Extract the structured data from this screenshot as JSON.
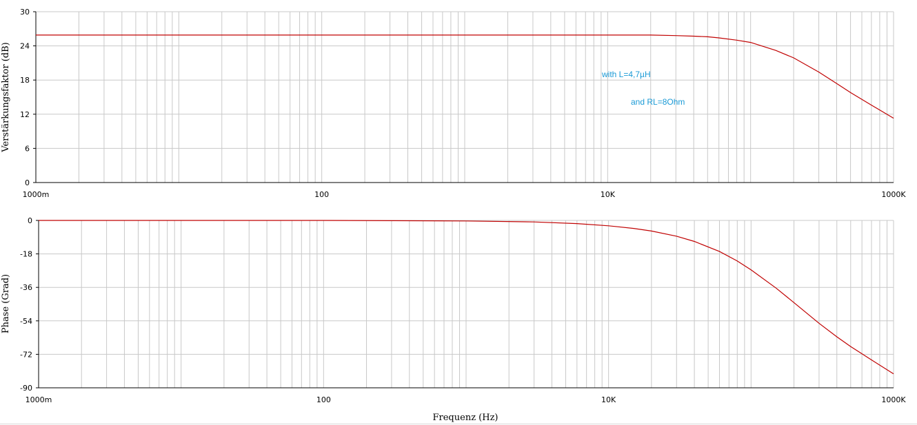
{
  "colors": {
    "grid": "#c8c8c8",
    "axis": "#000000",
    "curve": "#c00000",
    "annotation": "#1a9ad6"
  },
  "chart_data": [
    {
      "type": "line",
      "title": "",
      "xlabel": "",
      "ylabel": "Verstärkungsfaktor (dB)",
      "xscale": "log",
      "xlim": [
        1,
        1000000
      ],
      "ylim": [
        0,
        30
      ],
      "yticks": [
        0,
        6,
        12,
        18,
        24,
        30
      ],
      "xtick_values": [
        1,
        100,
        10000,
        1000000
      ],
      "xtick_labels": [
        "1000m",
        "100",
        "10K",
        "1000K"
      ],
      "grid": true,
      "annotations": [
        "with L=4,7µH",
        "and RL=8Ohm"
      ],
      "series": [
        {
          "x": [
            1,
            10,
            100,
            1000,
            10000,
            20000,
            30000,
            40000,
            50000,
            60000,
            80000,
            100000,
            150000,
            200000,
            300000,
            400000,
            500000,
            700000,
            1000000
          ],
          "y": [
            25.9,
            25.9,
            25.9,
            25.9,
            25.9,
            25.9,
            25.8,
            25.7,
            25.6,
            25.4,
            25.0,
            24.6,
            23.2,
            21.9,
            19.4,
            17.4,
            15.8,
            13.6,
            11.3
          ]
        }
      ]
    },
    {
      "type": "line",
      "title": "",
      "xlabel": "Frequenz (Hz)",
      "ylabel": "Phase (Grad)",
      "xscale": "log",
      "xlim": [
        1,
        1000000
      ],
      "ylim": [
        -90,
        0
      ],
      "yticks": [
        0,
        -18,
        -36,
        -54,
        -72,
        -90
      ],
      "xtick_values": [
        1,
        100,
        10000,
        1000000
      ],
      "xtick_labels": [
        "1000m",
        "100",
        "10K",
        "1000K"
      ],
      "grid": true,
      "series": [
        {
          "x": [
            1,
            100,
            1000,
            3000,
            6000,
            10000,
            15000,
            20000,
            30000,
            40000,
            60000,
            80000,
            100000,
            150000,
            200000,
            300000,
            400000,
            500000,
            700000,
            1000000
          ],
          "y": [
            0,
            0,
            -0.3,
            -0.8,
            -1.7,
            -2.9,
            -4.3,
            -5.7,
            -8.5,
            -11.3,
            -16.7,
            -21.8,
            -26.6,
            -36.4,
            -44.2,
            -55.3,
            -62.6,
            -67.8,
            -75.0,
            -82.5
          ]
        }
      ]
    }
  ]
}
